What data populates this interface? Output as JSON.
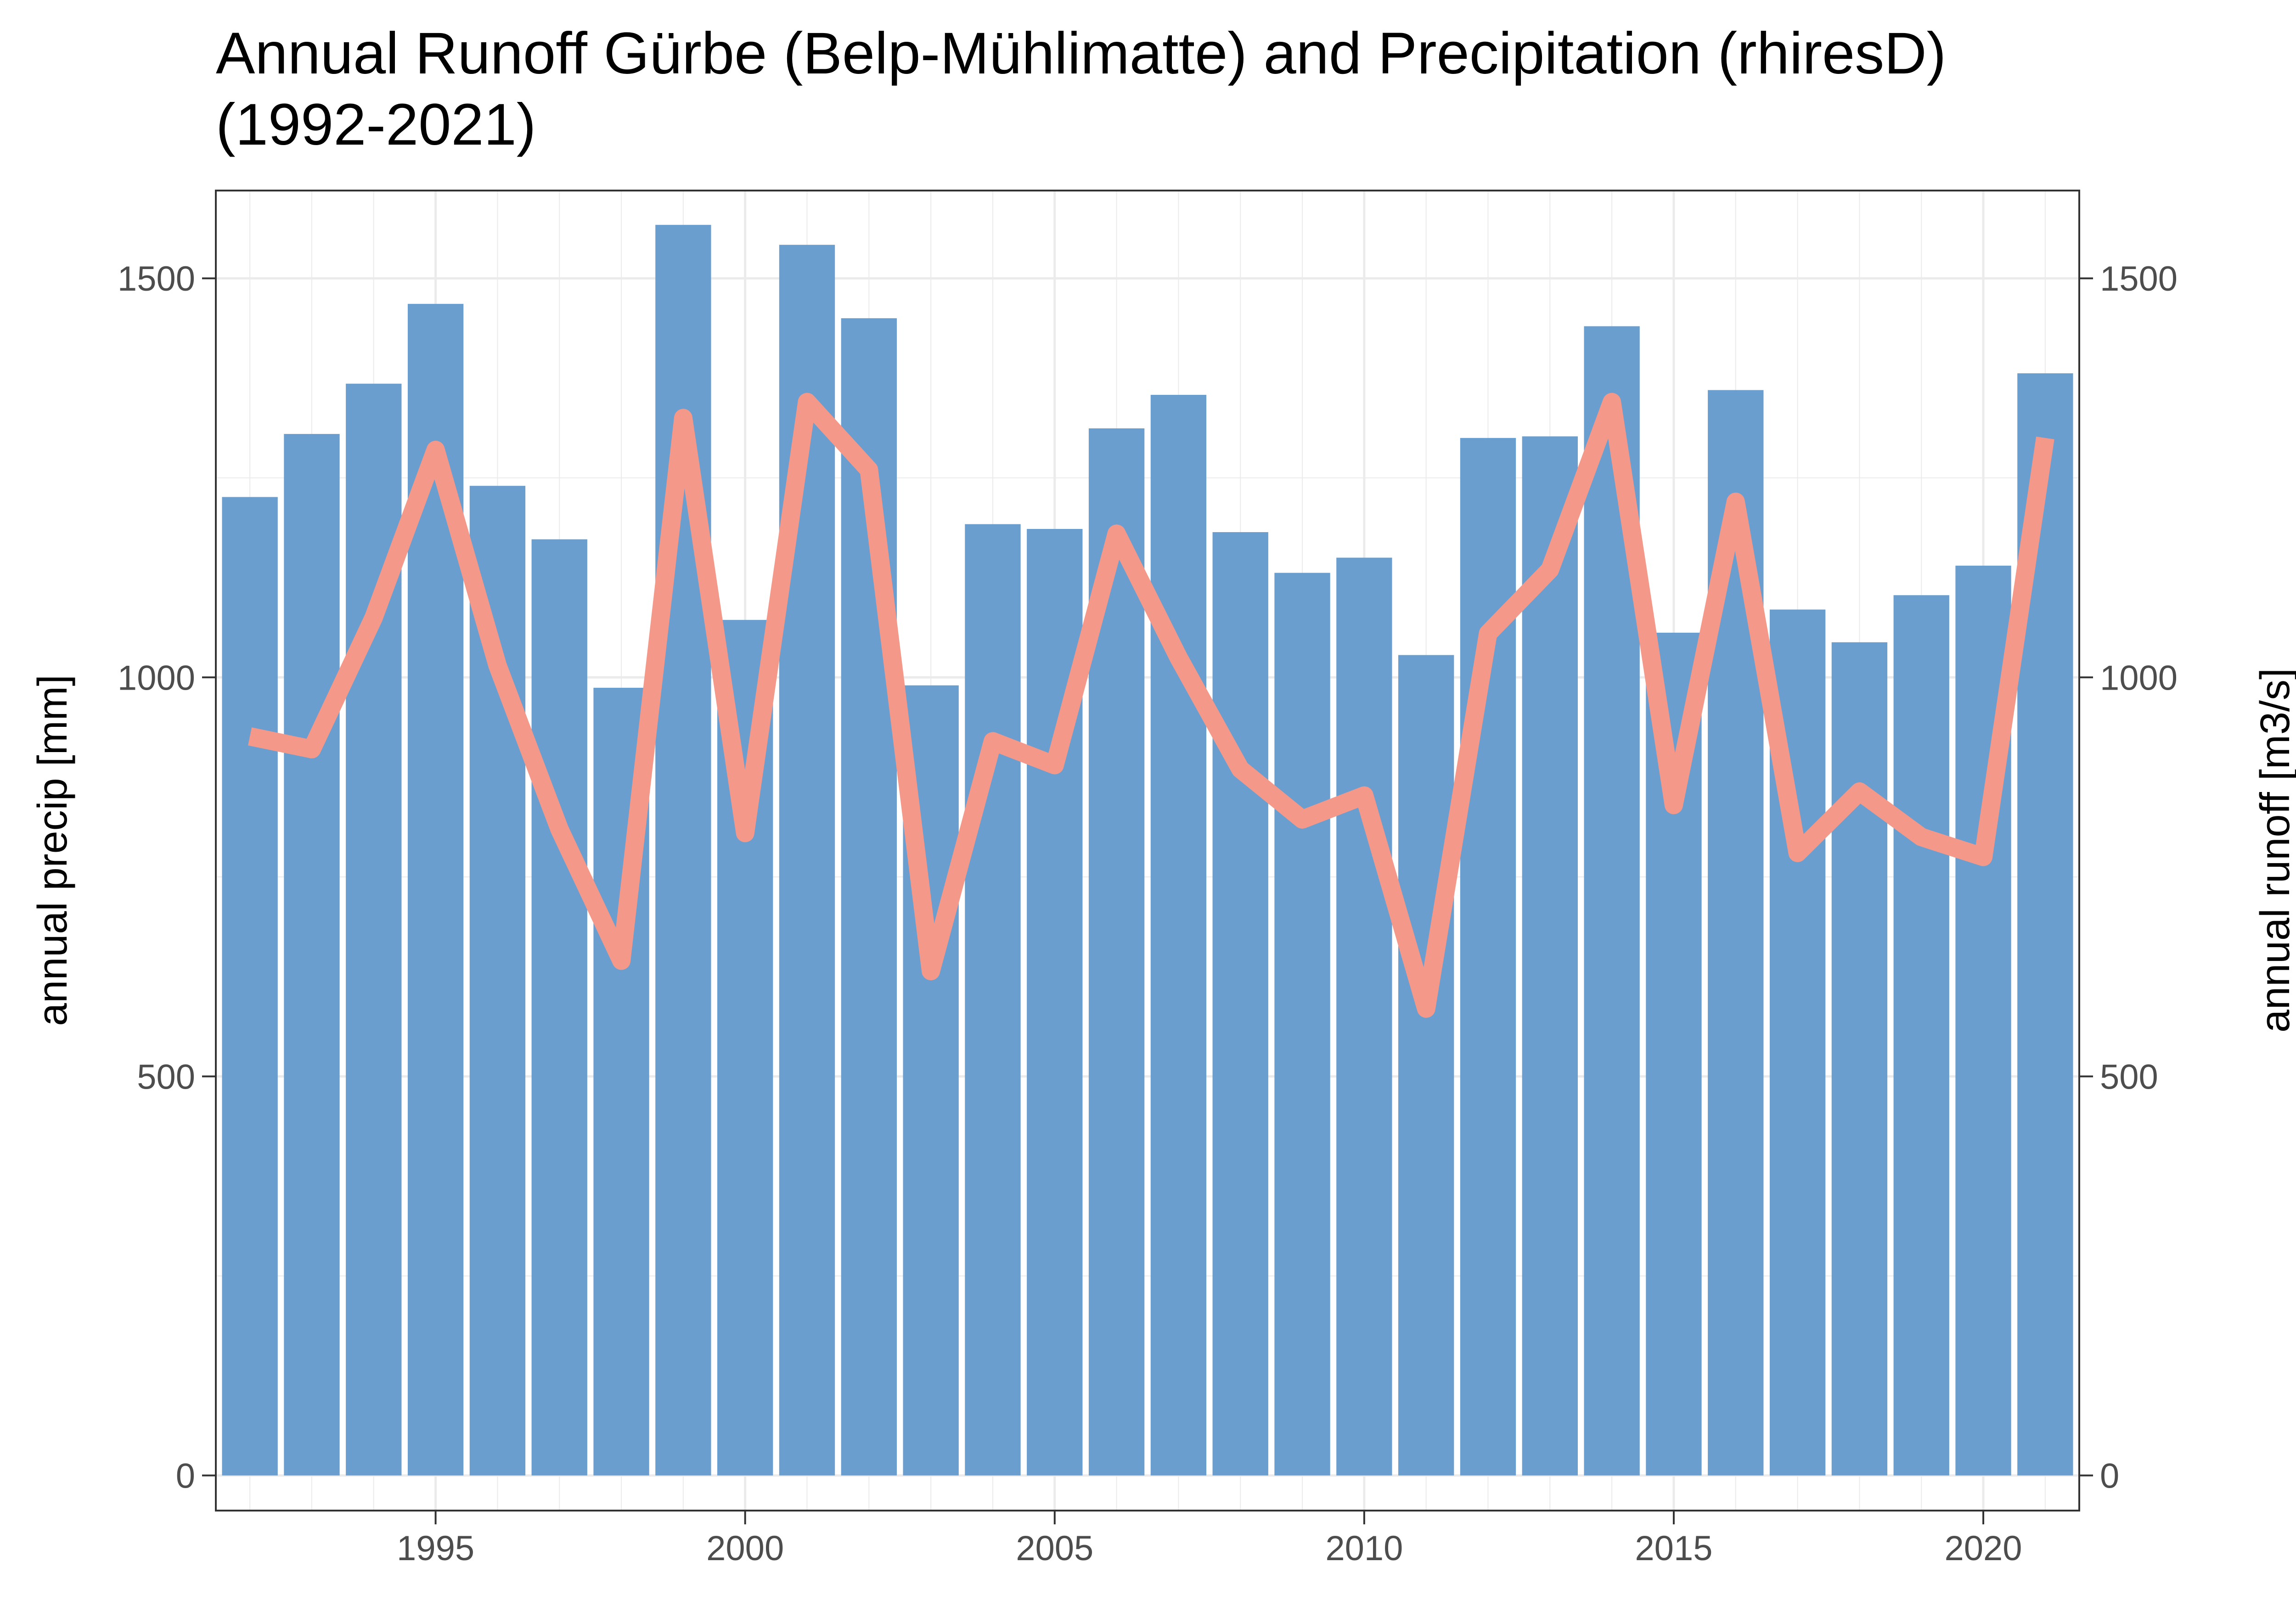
{
  "chart_data": {
    "type": "bar",
    "title_lines": [
      "Annual Runoff Gürbe (Belp-Mühlimatte) and Precipitation (rhiresD)",
      "(1992-2021)"
    ],
    "ylabel_left": "annual precip [mm]",
    "ylabel_right": "annual runoff [m3/s]",
    "x_ticks": [
      1995,
      2000,
      2005,
      2010,
      2015,
      2020
    ],
    "y_ticks_left": [
      0,
      500,
      1000,
      1500
    ],
    "y_ticks_right": [
      0,
      500,
      1000,
      1500
    ],
    "xlim": [
      1991.45,
      2021.55
    ],
    "ylim": [
      -44,
      1610
    ],
    "grid": true,
    "colors": {
      "precip_bars": "#6a9ecf",
      "runoff_line": "#f4998a",
      "grid": "#ebebeb",
      "panel_border": "#333333"
    },
    "series": [
      {
        "type": "bar",
        "axis": "left",
        "x": [
          1992,
          1993,
          1994,
          1995,
          1996,
          1997,
          1998,
          1999,
          2000,
          2001,
          2002,
          2003,
          2004,
          2005,
          2006,
          2007,
          2008,
          2009,
          2010,
          2011,
          2012,
          2013,
          2014,
          2015,
          2016,
          2017,
          2018,
          2019,
          2020,
          2021
        ],
        "values": [
          1226,
          1305,
          1368,
          1468,
          1240,
          1173,
          987,
          1567,
          1072,
          1542,
          1450,
          990,
          1192,
          1186,
          1312,
          1354,
          1182,
          1131,
          1150,
          1028,
          1300,
          1302,
          1440,
          1056,
          1360,
          1085,
          1044,
          1103,
          1140,
          1381
        ]
      },
      {
        "type": "line",
        "axis": "right",
        "x": [
          1992,
          1993,
          1994,
          1995,
          1996,
          1997,
          1998,
          1999,
          2000,
          2001,
          2002,
          2003,
          2004,
          2005,
          2006,
          2007,
          2008,
          2009,
          2010,
          2011,
          2012,
          2013,
          2014,
          2015,
          2016,
          2017,
          2018,
          2019,
          2020,
          2021
        ],
        "values": [
          926,
          910,
          1075,
          1285,
          1015,
          810,
          645,
          1325,
          805,
          1345,
          1260,
          632,
          920,
          890,
          1180,
          1025,
          885,
          822,
          852,
          585,
          1055,
          1135,
          1345,
          840,
          1220,
          780,
          857,
          800,
          775,
          1300
        ]
      }
    ]
  }
}
